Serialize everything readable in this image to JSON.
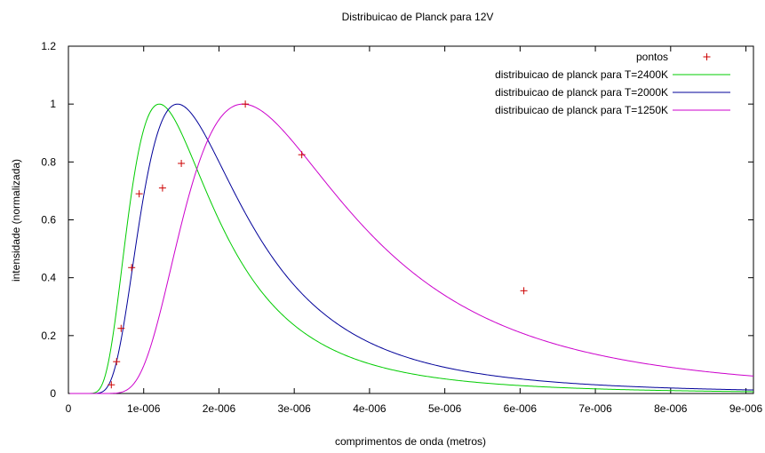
{
  "chart_data": {
    "type": "line",
    "title": "Distribuicao de Planck para 12V",
    "xlabel": "comprimentos de onda (metros)",
    "ylabel": "intensidade (normalizada)",
    "xlim": [
      0,
      9.1e-06
    ],
    "ylim": [
      0,
      1.2
    ],
    "xticks": [
      0,
      1e-06,
      2e-06,
      3e-06,
      4e-06,
      5e-06,
      6e-06,
      7e-06,
      8e-06,
      9e-06
    ],
    "xtick_labels": [
      "0",
      "1e-006",
      "2e-006",
      "3e-006",
      "4e-006",
      "5e-006",
      "6e-006",
      "7e-006",
      "8e-006",
      "9e-006"
    ],
    "yticks": [
      0,
      0.2,
      0.4,
      0.6,
      0.8,
      1.0,
      1.2
    ],
    "ytick_labels": [
      "0",
      "0.2",
      "0.4",
      "0.6",
      "0.8",
      "1",
      "1.2"
    ],
    "grid": false,
    "legend_position": "top-right",
    "points": {
      "name": "pontos",
      "color": "#cc0000",
      "x": [
        5.7e-07,
        6.4e-07,
        7e-07,
        8.4e-07,
        9.4e-07,
        1.25e-06,
        1.5e-06,
        2.35e-06,
        3.1e-06,
        6.05e-06
      ],
      "y": [
        0.03,
        0.11,
        0.225,
        0.435,
        0.69,
        0.71,
        0.795,
        1.0,
        0.825,
        0.355
      ]
    },
    "series": [
      {
        "name": "distribuicao de planck para T=2400K",
        "color": "#00cc00",
        "T": 2400
      },
      {
        "name": "distribuicao de planck para T=2000K",
        "color": "#000099",
        "T": 2000
      },
      {
        "name": "distribuicao de planck para T=1250K",
        "color": "#cc00cc",
        "T": 1250
      }
    ]
  }
}
